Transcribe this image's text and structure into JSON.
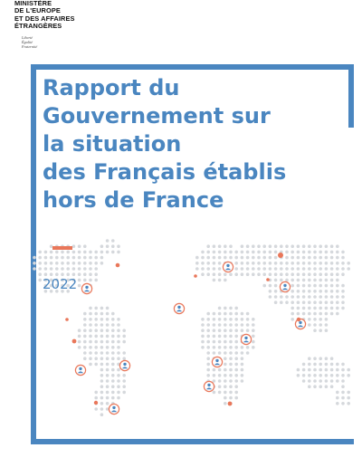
{
  "header": {
    "ministry_lines": [
      "MINISTÈRE",
      "DE L'EUROPE",
      "ET DES AFFAIRES",
      "ÉTRANGÈRES"
    ],
    "motto_lines": [
      "Liberté",
      "Égalité",
      "Fraternité"
    ]
  },
  "cover": {
    "title_lines": [
      "Rapport du",
      "Gouvernement sur",
      "la situation",
      "des Français établis",
      "hors de France"
    ],
    "year": "2022"
  },
  "colors": {
    "brand_blue": "#4a86c0",
    "accent_orange": "#e9775a",
    "dot_gray": "#d5d8dc"
  },
  "map": {
    "icon": "person-marker-icon"
  }
}
